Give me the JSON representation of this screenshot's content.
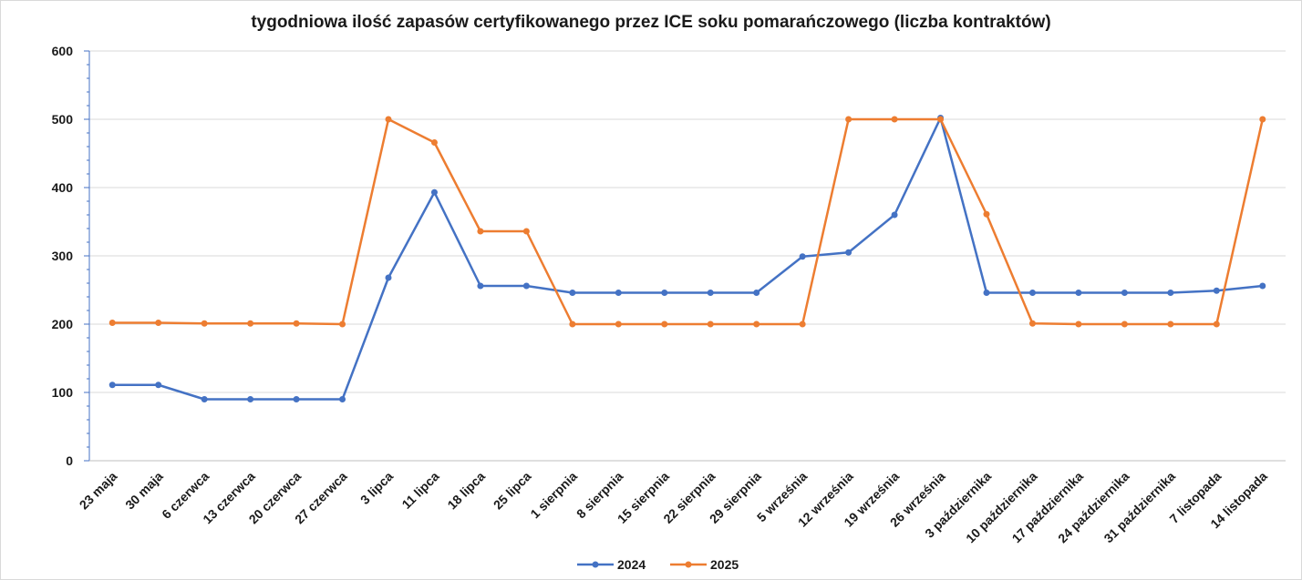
{
  "chart_data": {
    "type": "line",
    "title": "tygodniowa ilość zapasów certyfikowanego przez ICE soku pomarańczowego (liczba kontraktów)",
    "xlabel": "",
    "ylabel": "",
    "ylim": [
      0,
      600
    ],
    "yticks": [
      "0",
      "100",
      "200",
      "300",
      "400",
      "500",
      "600"
    ],
    "grid": "horizontal",
    "legend_position": "bottom",
    "categories": [
      "23 maja",
      "30 maja",
      "6 czerwca",
      "13 czerwca",
      "20 czerwca",
      "27 czerwca",
      "3 lipca",
      "11 lipca",
      "18 lipca",
      "25 lipca",
      "1 sierpnia",
      "8 sierpnia",
      "15 sierpnia",
      "22 sierpnia",
      "29 sierpnia",
      "5 września",
      "12 września",
      "19 września",
      "26 września",
      "3 października",
      "10 października",
      "17 października",
      "24 października",
      "31 października",
      "7 listopada",
      "14 listopada"
    ],
    "series": [
      {
        "name": "2024",
        "color": "#4472c4",
        "values": [
          111,
          111,
          90,
          90,
          90,
          90,
          268,
          393,
          256,
          256,
          246,
          246,
          246,
          246,
          246,
          299,
          305,
          360,
          502,
          246,
          246,
          246,
          246,
          246,
          249,
          256
        ]
      },
      {
        "name": "2025",
        "color": "#ed7d31",
        "values": [
          202,
          202,
          201,
          201,
          201,
          200,
          500,
          466,
          336,
          336,
          200,
          200,
          200,
          200,
          200,
          200,
          500,
          500,
          500,
          361,
          201,
          200,
          200,
          200,
          200,
          500
        ]
      }
    ]
  }
}
